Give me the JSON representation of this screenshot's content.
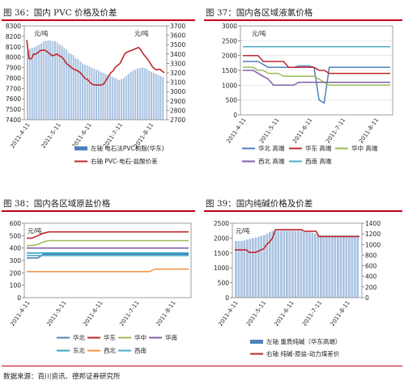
{
  "source": "数据来源：百川资讯、德邦证券研究所",
  "colors": {
    "rule": "#c0001a",
    "bar": "#a9c2e0",
    "bar_legend": "#4f81bd",
    "red": "#c0282d",
    "blue": "#4f81bd",
    "green": "#9bbb59",
    "purple": "#7f5fa8",
    "cyan": "#31a7c6",
    "orange": "#f79646",
    "lightblue": "#4bacc6"
  },
  "panels": {
    "p36": {
      "title": "图 36：国内 PVC 价格及价差",
      "legend": [
        "左轴 电石法PVC树脂(华东)",
        "右轴 PVC-电石-盐酸价差"
      ],
      "chart_data": {
        "type": "bar+line",
        "unit": "元/吨",
        "ylim_left": [
          7400,
          8300
        ],
        "yticks_left": [
          7400,
          7500,
          7600,
          7700,
          7800,
          7900,
          8000,
          8100,
          8200,
          8300
        ],
        "ylim_right": [
          2700,
          3700
        ],
        "yticks_right": [
          2700,
          2800,
          2900,
          3000,
          3100,
          3200,
          3300,
          3400,
          3500,
          3600,
          3700
        ],
        "x_ticks": [
          "2011-4-11",
          "2011-5-11",
          "2011-6-11",
          "2011-7-11",
          "2011-8-11"
        ],
        "bars": [
          8070,
          8080,
          8090,
          8095,
          8110,
          8120,
          8130,
          8150,
          8155,
          8160,
          8160,
          8150,
          8155,
          8140,
          8120,
          8110,
          8090,
          8070,
          8040,
          8030,
          8020,
          7990,
          7980,
          7960,
          7940,
          7930,
          7920,
          7910,
          7900,
          7890,
          7880,
          7870,
          7860,
          7850,
          7840,
          7830,
          7820,
          7810,
          7800,
          7790,
          7780,
          7790,
          7800,
          7820,
          7840,
          7860,
          7870,
          7880,
          7890,
          7895,
          7900,
          7895,
          7890,
          7870,
          7860,
          7850,
          7840,
          7830,
          7820,
          7810
        ],
        "line": [
          3550,
          3350,
          3350,
          3400,
          3400,
          3420,
          3440,
          3440,
          3440,
          3420,
          3400,
          3380,
          3390,
          3400,
          3380,
          3370,
          3340,
          3300,
          3280,
          3260,
          3240,
          3230,
          3220,
          3200,
          3170,
          3140,
          3130,
          3100,
          3080,
          3070,
          3070,
          3070,
          3070,
          3080,
          3120,
          3160,
          3200,
          3220,
          3260,
          3280,
          3300,
          3350,
          3400,
          3420,
          3430,
          3440,
          3450,
          3460,
          3470,
          3440,
          3400,
          3370,
          3340,
          3300,
          3260,
          3240,
          3230,
          3240,
          3220,
          3200
        ]
      }
    },
    "p37": {
      "title": "图 37：国内各区域液氯价格",
      "legend": [
        "华北 高端",
        "华东 高端",
        "华中 高端",
        "西北 高端",
        "西南 高端"
      ],
      "chart_data": {
        "type": "line",
        "unit": "元/吨",
        "ylim": [
          0,
          3000
        ],
        "yticks": [
          0,
          500,
          1000,
          1500,
          2000,
          2500,
          3000
        ],
        "x_ticks": [
          "2011-4-11",
          "2011-5-11",
          "2011-6-11",
          "2011-7-11",
          "2011-8-11"
        ],
        "series": [
          {
            "name": "华北 高端",
            "values": [
              1800,
              1800,
              1800,
              1800,
              1700,
              1600,
              1600,
              1600,
              1600,
              1600,
              1600,
              1650,
              1650,
              1650,
              1600,
              500,
              400,
              1600,
              1600,
              1600,
              1600,
              1600,
              1600,
              1600,
              1600,
              1600,
              1600,
              1600,
              1600,
              1600
            ]
          },
          {
            "name": "华东 高端",
            "values": [
              2000,
              2000,
              2000,
              2000,
              1800,
              1800,
              1800,
              1800,
              1800,
              1600,
              1600,
              1600,
              1600,
              1600,
              1600,
              1500,
              1500,
              1400,
              1400,
              1400,
              1400,
              1400,
              1400,
              1400,
              1400,
              1400,
              1400,
              1400,
              1400,
              1400
            ]
          },
          {
            "name": "华中 高端",
            "values": [
              1600,
              1600,
              1600,
              1500,
              1500,
              1400,
              1400,
              1400,
              1300,
              1300,
              1300,
              1300,
              1300,
              1300,
              1300,
              1200,
              1100,
              1000,
              1000,
              1000,
              1000,
              1000,
              1000,
              1000,
              1000,
              1000,
              1000,
              1000,
              1000,
              1000
            ]
          },
          {
            "name": "西北 高端",
            "values": [
              1500,
              1500,
              1500,
              1400,
              1300,
              1200,
              1000,
              1000,
              1000,
              1000,
              1000,
              1100,
              1100,
              1100,
              1100,
              1100,
              1100,
              1100,
              1100,
              1100,
              1100,
              1100,
              1100,
              1100,
              1100,
              1100,
              1100,
              1100,
              1100,
              1100
            ]
          },
          {
            "name": "西南 高端",
            "values": [
              2300,
              2300,
              2300,
              2300,
              2300,
              2300,
              2300,
              2300,
              2300,
              2300,
              2300,
              2300,
              2300,
              2300,
              2300,
              2300,
              2300,
              2300,
              2300,
              2300,
              2300,
              2300,
              2300,
              2300,
              2300,
              2300,
              2300,
              2300,
              2300,
              2300
            ]
          }
        ]
      }
    },
    "p38": {
      "title": "图 38：国内各区域原盐价格",
      "legend": [
        "华北",
        "华东",
        "华中",
        "华南",
        "东北",
        "西北",
        "西南"
      ],
      "chart_data": {
        "type": "line",
        "unit": "元/吨",
        "ylim": [
          0,
          600
        ],
        "yticks": [
          0,
          100,
          200,
          300,
          400,
          500,
          600
        ],
        "x_ticks": [
          "2011-4-11",
          "2011-5-11",
          "2011-6-11",
          "2011-7-11",
          "2011-8-11"
        ],
        "series": [
          {
            "name": "华北",
            "values": [
              320,
              320,
              320,
              350,
              350,
              350,
              350,
              350,
              350,
              350,
              350,
              350,
              350,
              350,
              350,
              350,
              350,
              350,
              350,
              350,
              350,
              350,
              350,
              350,
              350,
              350,
              350,
              350,
              350,
              350
            ]
          },
          {
            "name": "华东",
            "values": [
              480,
              480,
              500,
              520,
              530,
              530,
              530,
              530,
              530,
              530,
              530,
              530,
              530,
              530,
              530,
              530,
              530,
              530,
              530,
              530,
              530,
              530,
              530,
              530,
              530,
              530,
              530,
              530,
              530,
              530
            ]
          },
          {
            "name": "华中",
            "values": [
              420,
              420,
              430,
              450,
              460,
              460,
              460,
              460,
              460,
              460,
              460,
              460,
              460,
              460,
              460,
              460,
              460,
              460,
              460,
              460,
              460,
              460,
              460,
              460,
              460,
              460,
              460,
              460,
              460,
              460
            ]
          },
          {
            "name": "华南",
            "values": [
              400,
              400,
              400,
              400,
              400,
              400,
              400,
              400,
              400,
              400,
              400,
              400,
              400,
              400,
              400,
              400,
              400,
              400,
              400,
              400,
              400,
              400,
              400,
              400,
              400,
              400,
              400,
              400,
              400,
              400
            ]
          },
          {
            "name": "东北",
            "values": [
              360,
              360,
              360,
              360,
              360,
              360,
              360,
              360,
              360,
              360,
              360,
              360,
              360,
              360,
              360,
              360,
              360,
              360,
              360,
              360,
              360,
              360,
              360,
              360,
              360,
              360,
              360,
              360,
              360,
              360
            ]
          },
          {
            "name": "西北",
            "values": [
              210,
              210,
              210,
              210,
              210,
              210,
              210,
              210,
              210,
              210,
              210,
              210,
              210,
              210,
              210,
              210,
              210,
              210,
              210,
              210,
              210,
              210,
              210,
              230,
              230,
              230,
              230,
              230,
              230,
              230
            ]
          },
          {
            "name": "西南",
            "values": [
              340,
              340,
              340,
              340,
              340,
              340,
              340,
              340,
              340,
              340,
              340,
              340,
              340,
              340,
              340,
              340,
              340,
              340,
              340,
              340,
              340,
              340,
              340,
              340,
              340,
              340,
              340,
              340,
              340,
              340
            ]
          }
        ]
      }
    },
    "p39": {
      "title": "图 39：国内纯碱价格及价差",
      "legend": [
        "左轴 重质纯碱（华东高端）",
        "右轴 纯碱-原盐-动力煤差价"
      ],
      "chart_data": {
        "type": "bar+line",
        "unit": "元/吨",
        "ylim_left": [
          0,
          2500
        ],
        "yticks_left": [
          0,
          500,
          1000,
          1500,
          2000,
          2500
        ],
        "ylim_right": [
          0,
          1400
        ],
        "yticks_right": [
          0,
          200,
          400,
          600,
          800,
          1000,
          1200,
          1400
        ],
        "x_ticks": [
          "2011-4-11",
          "2011-5-11",
          "2011-6-11",
          "2011-7-11",
          "2011-8-11"
        ],
        "bars": [
          1900,
          1900,
          1900,
          1920,
          1950,
          1980,
          2000,
          2020,
          2050,
          2080,
          2100,
          2150,
          2200,
          2250,
          2250,
          2250,
          2250,
          2250,
          2250,
          2250,
          2250,
          2250,
          2250,
          2250,
          2200,
          2200,
          2200,
          2180,
          2150,
          2100,
          2100,
          2100,
          2100,
          2100,
          2100,
          2100,
          2100,
          2100,
          2100,
          2100,
          2100,
          2100,
          2100,
          2100
        ],
        "line": [
          900,
          900,
          900,
          900,
          900,
          850,
          850,
          850,
          870,
          900,
          920,
          1000,
          1050,
          1120,
          1280,
          1280,
          1280,
          1280,
          1280,
          1280,
          1280,
          1280,
          1280,
          1280,
          1250,
          1250,
          1250,
          1250,
          1250,
          1150,
          1150,
          1150,
          1150,
          1150,
          1150,
          1150,
          1150,
          1150,
          1150,
          1150,
          1150,
          1150,
          1150,
          1150
        ]
      }
    }
  }
}
